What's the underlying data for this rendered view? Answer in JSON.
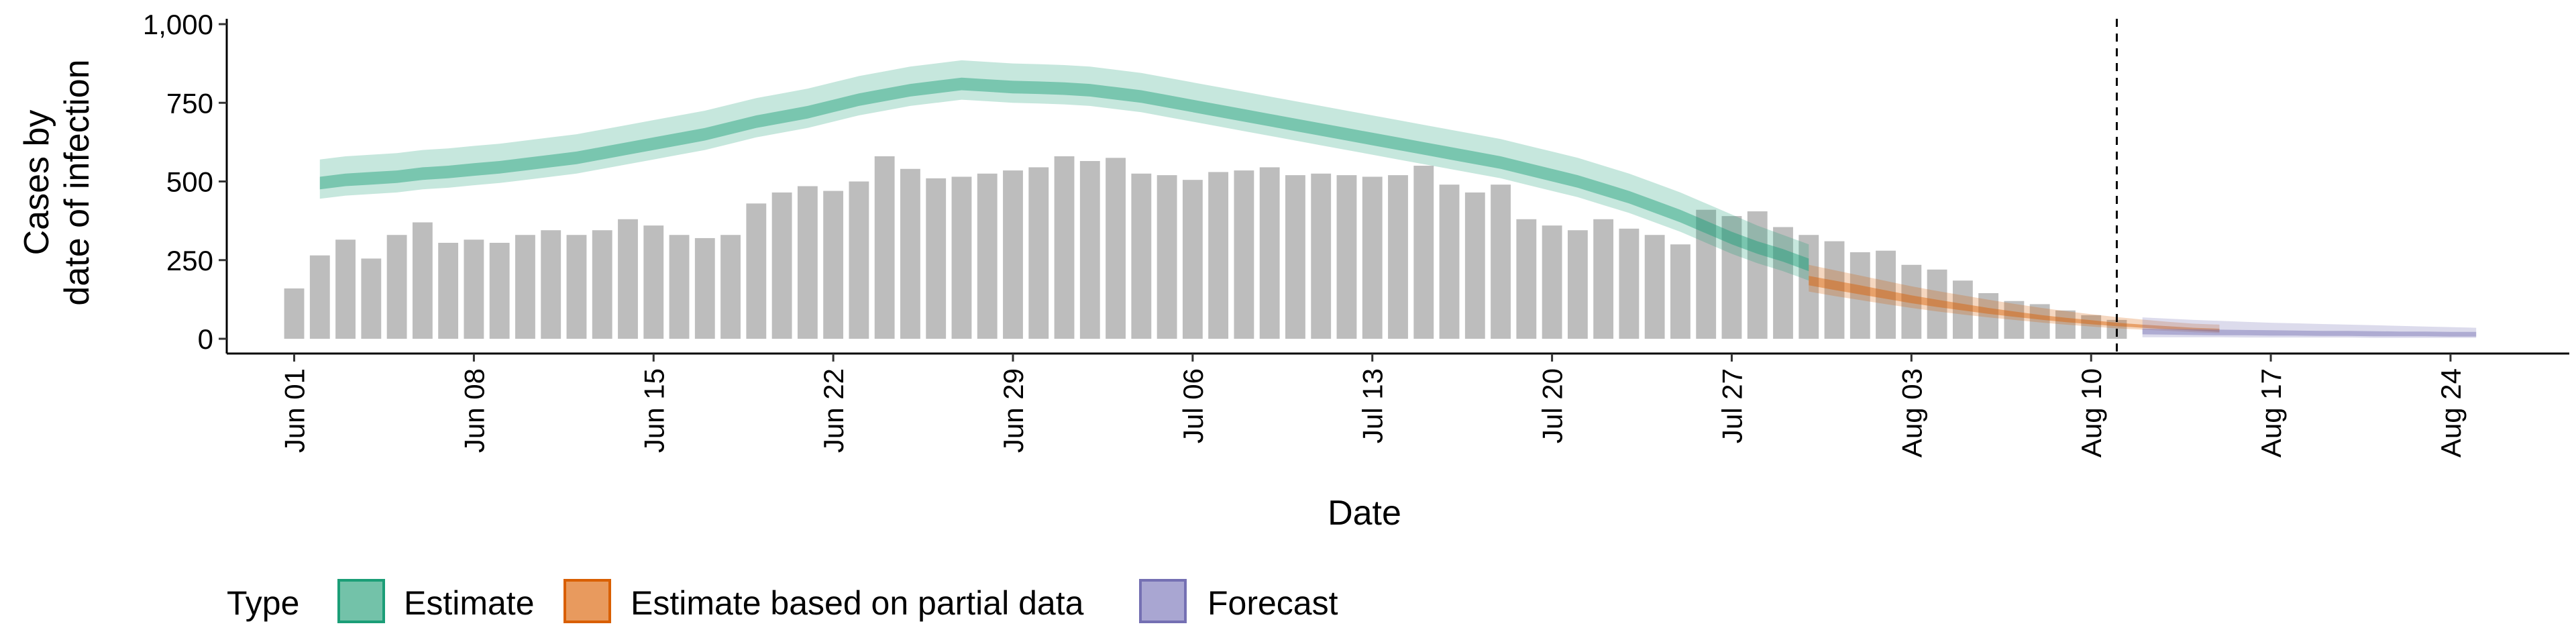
{
  "chart_data": {
    "type": "bar",
    "xlabel": "Date",
    "ylabel_lines": [
      "Cases by",
      "date of infection"
    ],
    "ylim": [
      0,
      1000
    ],
    "y_ticks": [
      0,
      250,
      500,
      750,
      1000
    ],
    "y_tick_labels": [
      "0",
      "250",
      "500",
      "750",
      "1,000"
    ],
    "x_start_date": "2020-05-30",
    "x_end_date": "2020-08-28",
    "x_ticks": [
      "2020-06-01",
      "2020-06-08",
      "2020-06-15",
      "2020-06-22",
      "2020-06-29",
      "2020-07-06",
      "2020-07-13",
      "2020-07-20",
      "2020-07-27",
      "2020-08-03",
      "2020-08-10",
      "2020-08-17",
      "2020-08-24"
    ],
    "x_tick_labels": [
      "Jun 01",
      "Jun 08",
      "Jun 15",
      "Jun 22",
      "Jun 29",
      "Jul 06",
      "Jul 13",
      "Jul 20",
      "Jul 27",
      "Aug 03",
      "Aug 10",
      "Aug 17",
      "Aug 24"
    ],
    "vline_date": "2020-08-11",
    "bars": {
      "start_date": "2020-06-01",
      "values": [
        160,
        265,
        315,
        255,
        330,
        370,
        305,
        315,
        305,
        330,
        345,
        330,
        345,
        380,
        360,
        330,
        320,
        330,
        430,
        465,
        485,
        470,
        500,
        580,
        540,
        510,
        515,
        525,
        535,
        545,
        580,
        565,
        575,
        525,
        520,
        505,
        530,
        535,
        545,
        520,
        525,
        520,
        515,
        520,
        550,
        490,
        465,
        490,
        380,
        360,
        345,
        380,
        350,
        330,
        300,
        410,
        390,
        405,
        355,
        330,
        310,
        275,
        280,
        235,
        220,
        185,
        145,
        120,
        110,
        90,
        75,
        60
      ]
    },
    "series": [
      {
        "name": "Estimate",
        "color": "#1B9E77",
        "start_date": "2020-06-02",
        "median": [
          495,
          505,
          510,
          515,
          525,
          530,
          538,
          545,
          555,
          565,
          575,
          590,
          605,
          620,
          635,
          650,
          670,
          690,
          705,
          720,
          740,
          760,
          775,
          790,
          800,
          810,
          805,
          800,
          798,
          795,
          790,
          780,
          770,
          755,
          740,
          725,
          710,
          695,
          680,
          665,
          650,
          635,
          620,
          605,
          590,
          575,
          560,
          540,
          520,
          500,
          475,
          450,
          420,
          390,
          355,
          320,
          290,
          265,
          235
        ],
        "inner_low": [
          475,
          485,
          490,
          495,
          505,
          510,
          518,
          525,
          535,
          545,
          555,
          570,
          585,
          600,
          615,
          630,
          650,
          670,
          685,
          700,
          720,
          740,
          755,
          770,
          780,
          790,
          785,
          780,
          778,
          775,
          770,
          760,
          750,
          735,
          720,
          705,
          690,
          675,
          660,
          645,
          630,
          615,
          600,
          585,
          570,
          555,
          540,
          520,
          500,
          480,
          455,
          430,
          400,
          370,
          335,
          300,
          270,
          245,
          215
        ],
        "inner_high": [
          515,
          525,
          530,
          535,
          545,
          550,
          558,
          565,
          575,
          585,
          595,
          610,
          625,
          640,
          655,
          670,
          690,
          710,
          725,
          740,
          760,
          780,
          795,
          810,
          820,
          830,
          825,
          820,
          818,
          815,
          810,
          800,
          790,
          775,
          760,
          745,
          730,
          715,
          700,
          685,
          670,
          655,
          640,
          625,
          610,
          595,
          580,
          560,
          540,
          520,
          495,
          470,
          440,
          410,
          375,
          340,
          310,
          285,
          255
        ],
        "outer_low": [
          445,
          455,
          460,
          465,
          475,
          480,
          488,
          495,
          505,
          515,
          525,
          540,
          555,
          570,
          585,
          600,
          620,
          640,
          655,
          670,
          690,
          710,
          725,
          740,
          750,
          760,
          755,
          750,
          748,
          745,
          740,
          730,
          720,
          705,
          690,
          675,
          660,
          645,
          630,
          615,
          600,
          585,
          570,
          555,
          540,
          525,
          510,
          490,
          470,
          450,
          425,
          400,
          370,
          340,
          305,
          270,
          240,
          215,
          185
        ],
        "outer_high": [
          570,
          580,
          585,
          590,
          600,
          605,
          613,
          620,
          630,
          640,
          650,
          665,
          680,
          695,
          710,
          725,
          745,
          765,
          780,
          795,
          815,
          835,
          850,
          865,
          875,
          885,
          880,
          875,
          873,
          870,
          865,
          855,
          845,
          830,
          815,
          800,
          785,
          770,
          755,
          740,
          725,
          710,
          695,
          680,
          665,
          650,
          635,
          615,
          595,
          575,
          550,
          525,
          495,
          465,
          430,
          395,
          360,
          330,
          300
        ]
      },
      {
        "name": "Estimate based on partial data",
        "color": "#D95F02",
        "start_date": "2020-07-30",
        "median": [
          185,
          170,
          155,
          140,
          125,
          112,
          100,
          88,
          78,
          68,
          60,
          52,
          45,
          40,
          35,
          30,
          27
        ],
        "inner_low": [
          170,
          155,
          141,
          127,
          113,
          101,
          90,
          79,
          70,
          61,
          53,
          46,
          40,
          35,
          30,
          26,
          22
        ],
        "inner_high": [
          200,
          185,
          170,
          154,
          138,
          124,
          111,
          98,
          87,
          76,
          67,
          59,
          51,
          45,
          40,
          35,
          32
        ],
        "outer_low": [
          150,
          136,
          123,
          110,
          98,
          87,
          77,
          68,
          60,
          52,
          45,
          39,
          33,
          29,
          25,
          21,
          18
        ],
        "outer_high": [
          235,
          218,
          201,
          184,
          167,
          152,
          138,
          124,
          111,
          99,
          88,
          78,
          69,
          61,
          54,
          48,
          45
        ]
      },
      {
        "name": "Forecast",
        "color": "#7570B3",
        "start_date": "2020-08-12",
        "median": [
          22,
          21,
          20,
          19,
          18,
          17,
          16,
          15,
          15,
          14,
          13,
          13,
          12,
          12
        ],
        "inner_low": [
          14,
          13,
          12,
          11,
          11,
          10,
          10,
          9,
          9,
          8,
          8,
          8,
          7,
          7
        ],
        "inner_high": [
          32,
          31,
          30,
          29,
          28,
          27,
          26,
          25,
          25,
          24,
          23,
          23,
          22,
          22
        ],
        "outer_low": [
          5,
          5,
          5,
          5,
          4,
          4,
          4,
          4,
          4,
          3,
          3,
          3,
          3,
          3
        ],
        "outer_high": [
          68,
          64,
          60,
          57,
          54,
          51,
          49,
          47,
          45,
          43,
          41,
          39,
          37,
          35
        ]
      }
    ],
    "legend": {
      "title": "Type",
      "position": "bottom",
      "items": [
        {
          "label": "Estimate",
          "fill": "#73C2A9",
          "stroke": "#1B9E77"
        },
        {
          "label": "Estimate based on partial data",
          "fill": "#E89A5E",
          "stroke": "#D95F02"
        },
        {
          "label": "Forecast",
          "fill": "#A9A6D2",
          "stroke": "#7570B3"
        }
      ]
    },
    "bar_color": "#BDBDBD",
    "grid": false
  }
}
